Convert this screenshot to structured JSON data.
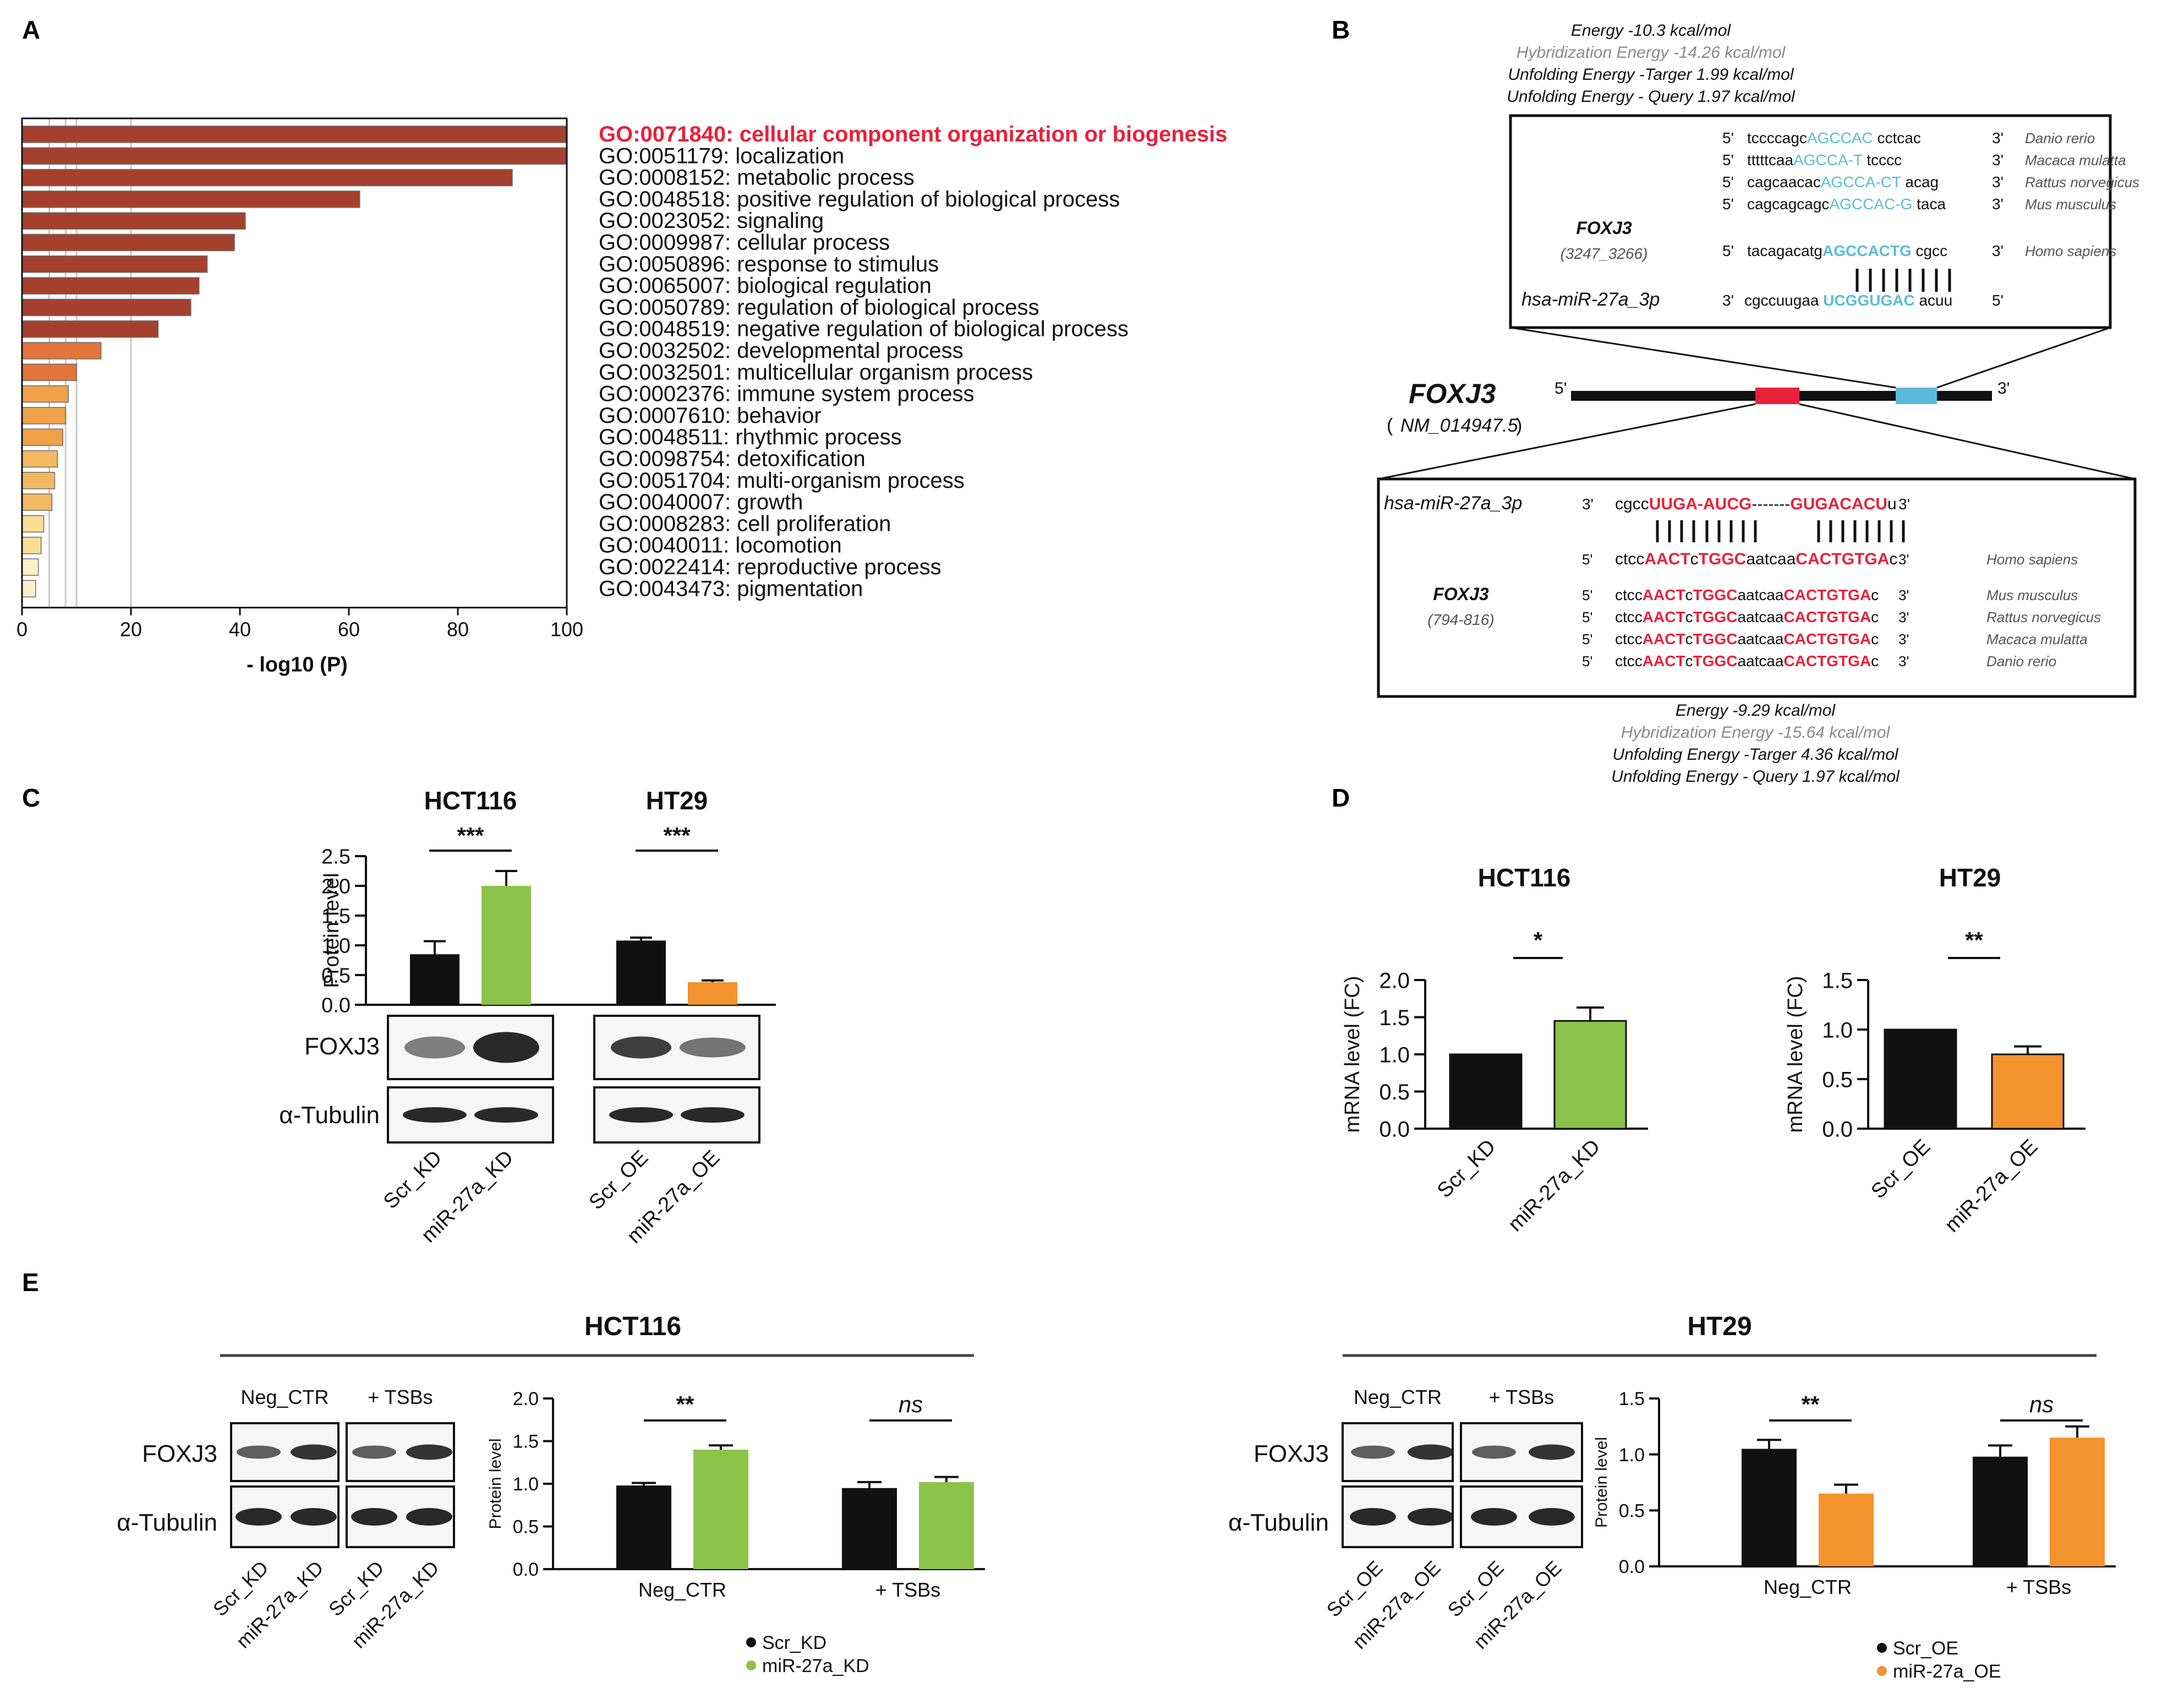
{
  "panels": {
    "A": "A",
    "B": "B",
    "C": "C",
    "D": "D",
    "E": "E"
  },
  "chart_data": [
    {
      "id": "A",
      "type": "bar",
      "orientation": "horizontal",
      "title": "",
      "xlabel": "- log10 (P)",
      "ylabel": "",
      "xlim": [
        0,
        100
      ],
      "xticks": [
        "0",
        "20",
        "40",
        "60",
        "80",
        "100"
      ],
      "categories": [
        "GO:0071840: cellular component organization or biogenesis",
        "GO:0051179: localization",
        "GO:0008152: metabolic process",
        "GO:0048518: positive regulation of biological process",
        "GO:0023052: signaling",
        "GO:0009987: cellular process",
        "GO:0050896: response to stimulus",
        "GO:0065007: biological regulation",
        "GO:0050789: regulation of biological process",
        "GO:0048519: negative regulation of biological process",
        "GO:0032502: developmental process",
        "GO:0032501: multicellular organism process",
        "GO:0002376: immune system process",
        "GO:0007610: behavior",
        "GO:0048511: rhythmic process",
        "GO:0098754: detoxification",
        "GO:0051704: multi-organism process",
        "GO:0040007: growth",
        "GO:0008283: cell proliferation",
        "GO:0040011: locomotion",
        "GO:0022414: reproductive process",
        "GO:0043473: pigmentation"
      ],
      "values": [
        100,
        100,
        90,
        62,
        41,
        39,
        34,
        32.5,
        31,
        25,
        14.5,
        10,
        8.5,
        8,
        7.5,
        6.5,
        6,
        5.5,
        4,
        3.5,
        3,
        2.5
      ],
      "colors": [
        "#a5402e",
        "#a5402e",
        "#a5402e",
        "#a5402e",
        "#a5402e",
        "#a5402e",
        "#a5402e",
        "#a5402e",
        "#a5402e",
        "#a5402e",
        "#e3743a",
        "#e3743a",
        "#f0a14a",
        "#f0a14a",
        "#f0a14a",
        "#f4b860",
        "#f4b860",
        "#f4b860",
        "#f9dd94",
        "#f9dd94",
        "#fcefc8",
        "#fcefc8"
      ],
      "highlight_color": "#e8213a"
    },
    {
      "id": "C",
      "type": "bar",
      "ylabel": "Protein level",
      "ylim": [
        0,
        2.5
      ],
      "yticks": [
        "0.0",
        "0.5",
        "1.0",
        "1.5",
        "2.0",
        "2.5"
      ],
      "groups": [
        {
          "title": "HCT116",
          "categories": [
            "Scr_KD",
            "miR-27a_KD"
          ],
          "values": [
            0.85,
            2.0
          ],
          "errors": [
            0.22,
            0.25
          ],
          "colors": [
            "#111111",
            "#8bc34a"
          ],
          "significance": "***"
        },
        {
          "title": "HT29",
          "categories": [
            "Scr_OE",
            "miR-27a_OE"
          ],
          "values": [
            1.08,
            0.38
          ],
          "errors": [
            0.05,
            0.03
          ],
          "colors": [
            "#111111",
            "#f4922e"
          ],
          "significance": "***"
        }
      ],
      "blot_labels": [
        "FOXJ3",
        "α-Tubulin"
      ]
    },
    {
      "id": "D",
      "type": "bar",
      "ylabel": "mRNA level (FC)",
      "charts": [
        {
          "title": "HCT116",
          "categories": [
            "Scr_KD",
            "miR-27a_KD"
          ],
          "values": [
            1.0,
            1.45
          ],
          "errors": [
            0.0,
            0.18
          ],
          "colors": [
            "#111111",
            "#8bc34a"
          ],
          "ylim": [
            0,
            2.0
          ],
          "yticks": [
            "0.0",
            "0.5",
            "1.0",
            "1.5",
            "2.0"
          ],
          "significance": "*"
        },
        {
          "title": "HT29",
          "categories": [
            "Scr_OE",
            "miR-27a_OE"
          ],
          "values": [
            1.0,
            0.75
          ],
          "errors": [
            0.0,
            0.08
          ],
          "colors": [
            "#111111",
            "#f4922e"
          ],
          "ylim": [
            0,
            1.5
          ],
          "yticks": [
            "0.0",
            "0.5",
            "1.0",
            "1.5"
          ],
          "significance": "**"
        }
      ]
    },
    {
      "id": "E",
      "type": "bar",
      "ylabel": "Protein level",
      "charts": [
        {
          "title": "HCT116",
          "groups": [
            "Neg_CTR",
            "+ TSBs"
          ],
          "series": [
            {
              "name": "Scr_KD",
              "values": [
                0.98,
                0.95
              ],
              "errors": [
                0.03,
                0.07
              ],
              "color": "#111111"
            },
            {
              "name": "miR-27a_KD",
              "values": [
                1.4,
                1.02
              ],
              "errors": [
                0.05,
                0.06
              ],
              "color": "#8bc34a"
            }
          ],
          "ylim": [
            0,
            2.0
          ],
          "yticks": [
            "0.0",
            "0.5",
            "1.0",
            "1.5",
            "2.0"
          ],
          "significance": [
            "**",
            "ns"
          ],
          "blot_groups": [
            "Neg_CTR",
            "+ TSBs"
          ],
          "blot_labels": [
            "FOXJ3",
            "α-Tubulin"
          ],
          "lanes": [
            "Scr_KD",
            "miR-27a_KD",
            "Scr_KD",
            "miR-27a_KD"
          ]
        },
        {
          "title": "HT29",
          "groups": [
            "Neg_CTR",
            "+ TSBs"
          ],
          "series": [
            {
              "name": "Scr_OE",
              "values": [
                1.05,
                0.98
              ],
              "errors": [
                0.08,
                0.1
              ],
              "color": "#111111"
            },
            {
              "name": "miR-27a_OE",
              "values": [
                0.65,
                1.15
              ],
              "errors": [
                0.08,
                0.1
              ],
              "color": "#f4922e"
            }
          ],
          "ylim": [
            0,
            1.5
          ],
          "yticks": [
            "0.0",
            "0.5",
            "1.0",
            "1.5"
          ],
          "significance": [
            "**",
            "ns"
          ],
          "blot_groups": [
            "Neg_CTR",
            "+ TSBs"
          ],
          "blot_labels": [
            "FOXJ3",
            "α-Tubulin"
          ],
          "lanes": [
            "Scr_OE",
            "miR-27a_OE",
            "Scr_OE",
            "miR-27a_OE"
          ]
        }
      ]
    }
  ],
  "panelB": {
    "gene": "FOXJ3",
    "accession": "NM_014947.5",
    "five": "5'",
    "three": "3'",
    "top": {
      "energy": [
        "Energy -10.3 kcal/mol",
        "Hybridization Energy -14.26 kcal/mol",
        "Unfolding Energy -Targer 1.99 kcal/mol",
        "Unfolding Energy - Query 1.97 kcal/mol"
      ],
      "site_gene": "FOXJ3",
      "site_range": "(3247_3266)",
      "mirna": "hsa-miR-27a_3p",
      "seqs": [
        {
          "p5": "5'",
          "pre": "tccccagc",
          "core": "AGCCAC",
          "post": "cctcac",
          "p3": "3'",
          "species": "Danio rerio"
        },
        {
          "p5": "5'",
          "pre": "tttttcaa",
          "core": "AGCCA-T",
          "post": "tcccc",
          "p3": "3'",
          "species": "Macaca mulatta"
        },
        {
          "p5": "5'",
          "pre": "cagcaacac",
          "core": "AGCCA-CT",
          "post": "acag",
          "p3": "3'",
          "species": "Rattus norvegicus"
        },
        {
          "p5": "5'",
          "pre": "cagcagcagc",
          "core": "AGCCAC-G",
          "post": "taca",
          "p3": "3'",
          "species": "Mus musculus"
        }
      ],
      "human": {
        "p5": "5'",
        "pre": "tacagacatg",
        "core": "AGCCACTG",
        "post": "cgcc",
        "p3": "3'",
        "species": "Homo sapiens"
      },
      "mir": {
        "p3": "3'",
        "pre": "cgccuugaa",
        "core": "UCGGUGAC",
        "post": "acuu",
        "p5": "5'"
      }
    },
    "bottom": {
      "mirna": "hsa-miR-27a_3p",
      "mir": {
        "p3": "3'",
        "a": "cgcc",
        "b": "UUGA-AUCG",
        "c": "-------",
        "d": "GUGACACU",
        "e": "u",
        "p5": "3'"
      },
      "human": {
        "p5": "5'",
        "a": "ctcc",
        "b": "AACT",
        "c": "c",
        "d": "TGGC",
        "e": "aatcaa",
        "f": "CACTGTGA",
        "g": "c",
        "p3": "3'",
        "species": "Homo sapiens"
      },
      "site_gene": "FOXJ3",
      "site_range": "(794-816)",
      "seqs": [
        {
          "p5": "5'",
          "a": "ctcc",
          "b": "AACT",
          "c": "c",
          "d": "TGGC",
          "e": "aatcaa",
          "f": "CACTGTGA",
          "g": "c",
          "p3": "3'",
          "species": "Mus musculus"
        },
        {
          "p5": "5'",
          "a": "ctcc",
          "b": "AACT",
          "c": "c",
          "d": "TGGC",
          "e": "aatcaa",
          "f": "CACTGTGA",
          "g": "c",
          "p3": "3'",
          "species": "Rattus norvegicus"
        },
        {
          "p5": "5'",
          "a": "ctcc",
          "b": "AACT",
          "c": "c",
          "d": "TGGC",
          "e": "aatcaa",
          "f": "CACTGTGA",
          "g": "c",
          "p3": "3'",
          "species": "Macaca mulatta"
        },
        {
          "p5": "5'",
          "a": "ctcc",
          "b": "AACT",
          "c": "c",
          "d": "TGGC",
          "e": "aatcaa",
          "f": "CACTGTGA",
          "g": "c",
          "p3": "3'",
          "species": "Danio rerio"
        }
      ],
      "energy": [
        "Energy -9.29 kcal/mol",
        "Hybridization Energy -15.64 kcal/mol",
        "Unfolding Energy -Targer 4.36 kcal/mol",
        "Unfolding Energy - Query 1.97 kcal/mol"
      ]
    },
    "colors": {
      "blue": "#5bbbd8",
      "red": "#e8213a",
      "gray": "#8a8a8a"
    }
  }
}
